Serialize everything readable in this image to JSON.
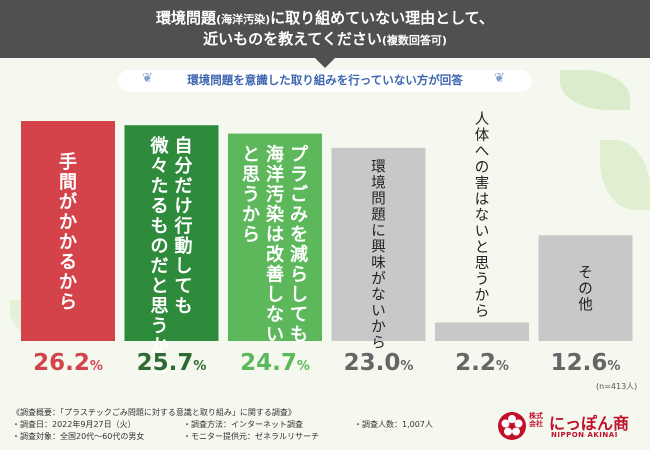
{
  "header": {
    "line1_a": "環境問題",
    "line1_b": "(海洋汚染)",
    "line1_c": "に取り組めていない理由として、",
    "line2_a": "近いものを教えてください",
    "line2_b": "(複数回答可)"
  },
  "subtitle": "環境問題を意識した取り組みを行っていない方が回答",
  "chart_data": {
    "type": "bar",
    "categories": [
      "手間がかかるから",
      "自分だけ行動しても微々たるものだと思うから",
      "プラごみを減らしても海洋汚染は改善しないと思うから",
      "環境問題に興味がないから",
      "人体への害はないと思うから",
      "その他"
    ],
    "label_columns": [
      [
        "手間がかかるから"
      ],
      [
        "自分だけ行動しても",
        "微々たるものだと思うから"
      ],
      [
        "プラごみを減らしても",
        "海洋汚染は改善しない",
        "と思うから"
      ],
      [
        "環境問題に興味がないから"
      ],
      [
        "人体への害はないと思うから"
      ],
      [
        "その他"
      ]
    ],
    "values": [
      26.2,
      25.7,
      24.7,
      23.0,
      2.2,
      12.6
    ],
    "value_labels": [
      "26.2",
      "25.7",
      "24.7",
      "23.0",
      "2.2",
      "12.6"
    ],
    "unit": "%",
    "colors": [
      "#d4434a",
      "#2e8b3c",
      "#5db85c",
      "#c8c8c8",
      "#c8c8c8",
      "#c8c8c8"
    ],
    "label_colors": [
      "#d4434a",
      "#2e6b34",
      "#5db85c",
      "#666666",
      "#666666",
      "#666666"
    ],
    "ylim": [
      0,
      26.2
    ],
    "sample_note": "(n=413人)"
  },
  "footer": {
    "title": "《調査概要：「プラスチックごみ問題に対する意識と取り組み」に関する調査》",
    "items": [
      "・調査日：2022年9月27日（火）",
      "・調査方法：インターネット調査",
      "・調査人数：1,007人",
      "・調査対象：全国20代～60代の男女",
      "・モニター提供元：ゼネラルリサーチ"
    ]
  },
  "logo": {
    "small_a": "株式",
    "small_b": "会社",
    "name": "にっぽん商",
    "sub": "NIPPON AKINAI"
  }
}
